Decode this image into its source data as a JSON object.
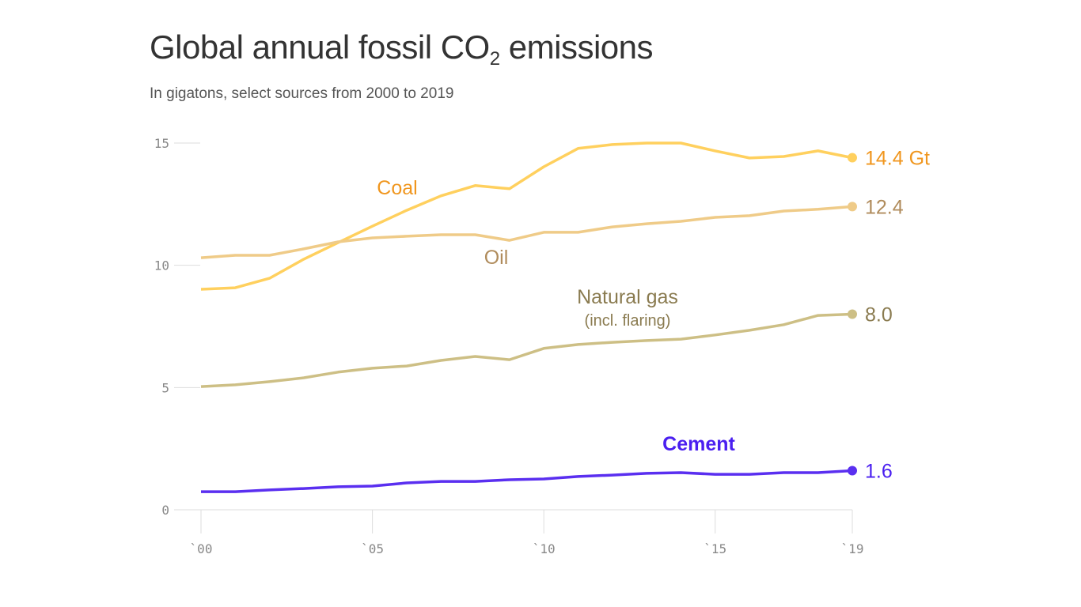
{
  "title_main": "Global annual fossil CO",
  "title_sub": "2",
  "title_end": " emissions",
  "subtitle": "In gigatons, select sources from 2000 to 2019",
  "chart_data": {
    "type": "line",
    "title": "Global annual fossil CO2 emissions",
    "subtitle": "In gigatons, select sources from 2000 to 2019",
    "x": [
      2000,
      2001,
      2002,
      2003,
      2004,
      2005,
      2006,
      2007,
      2008,
      2009,
      2010,
      2011,
      2012,
      2013,
      2014,
      2015,
      2016,
      2017,
      2018,
      2019
    ],
    "xticks": [
      2000,
      2005,
      2010,
      2015,
      2019
    ],
    "xtick_labels": [
      "`00",
      "`05",
      "`10",
      "`15",
      "`19"
    ],
    "yticks": [
      0,
      5,
      10,
      15
    ],
    "ytick_labels": [
      "0",
      "5",
      "10",
      "15"
    ],
    "ylim": [
      0,
      15
    ],
    "grid": false,
    "series": [
      {
        "name": "Coal",
        "label2": "",
        "end_label": "14.4 Gt",
        "color": "#ffd05e",
        "label_color": "#f0961e",
        "values": [
          9.02,
          9.08,
          9.47,
          10.25,
          10.93,
          11.6,
          12.25,
          12.84,
          13.26,
          13.13,
          14.03,
          14.78,
          14.94,
          15.0,
          15.0,
          14.68,
          14.39,
          14.45,
          14.68,
          14.4
        ]
      },
      {
        "name": "Oil",
        "label2": "",
        "end_label": "12.4",
        "color": "#efcb88",
        "label_color": "#b08c5c",
        "values": [
          10.31,
          10.41,
          10.41,
          10.67,
          10.96,
          11.12,
          11.19,
          11.25,
          11.25,
          11.02,
          11.35,
          11.35,
          11.57,
          11.7,
          11.8,
          11.96,
          12.03,
          12.22,
          12.29,
          12.4
        ]
      },
      {
        "name": "Natural gas",
        "label2": "(incl. flaring)",
        "end_label": "8.0",
        "color": "#cdbf85",
        "label_color": "#8a7b50",
        "values": [
          5.04,
          5.11,
          5.24,
          5.4,
          5.63,
          5.79,
          5.88,
          6.11,
          6.27,
          6.14,
          6.6,
          6.76,
          6.85,
          6.92,
          6.98,
          7.15,
          7.34,
          7.57,
          7.95,
          8.0
        ]
      },
      {
        "name": "Cement",
        "label2": "",
        "end_label": "1.6",
        "color": "#5a2ff0",
        "label_color": "#4a1ff0",
        "values": [
          0.74,
          0.74,
          0.81,
          0.87,
          0.94,
          0.97,
          1.1,
          1.16,
          1.16,
          1.23,
          1.26,
          1.36,
          1.42,
          1.49,
          1.52,
          1.45,
          1.45,
          1.52,
          1.52,
          1.6
        ]
      }
    ]
  }
}
